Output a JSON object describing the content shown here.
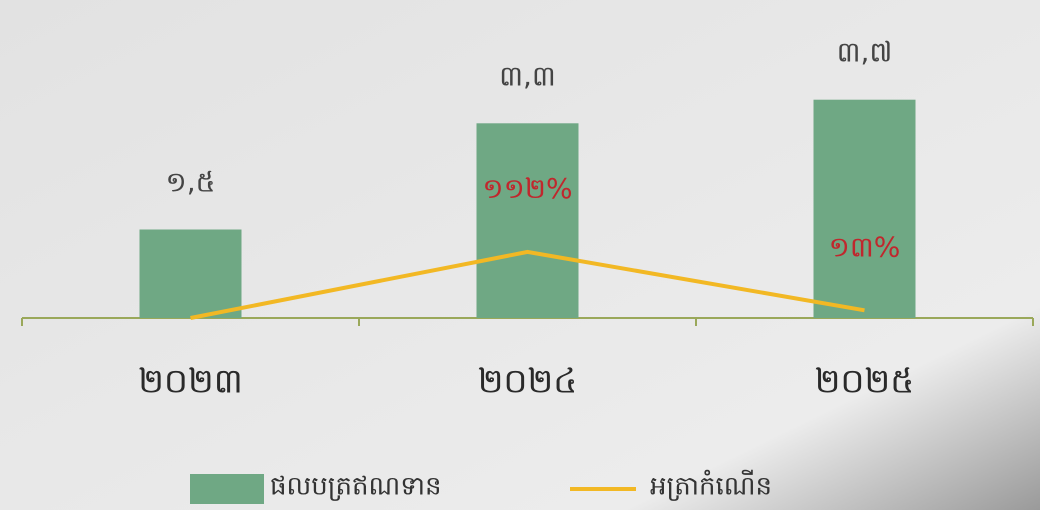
{
  "chart_data": {
    "type": "bar-line",
    "categories": [
      "២០២៣",
      "២០២៤",
      "២០២៥"
    ],
    "series": [
      {
        "name": "ផលបត្រឥណទាន",
        "type": "bar",
        "color": "#6fa884",
        "values": [
          1.5,
          3.3,
          3.7
        ],
        "value_labels": [
          "១,៥",
          "៣,៣",
          "៣,៧"
        ]
      },
      {
        "name": "អត្រាកំណើន",
        "type": "line",
        "axis": "y2",
        "color": "#f2b824",
        "values": [
          0,
          112,
          13
        ],
        "value_labels": [
          null,
          "១១២%",
          "១៣%"
        ]
      }
    ],
    "ylim": [
      0,
      5
    ],
    "y2lim": [
      0,
      500
    ],
    "legend": "bottom"
  }
}
